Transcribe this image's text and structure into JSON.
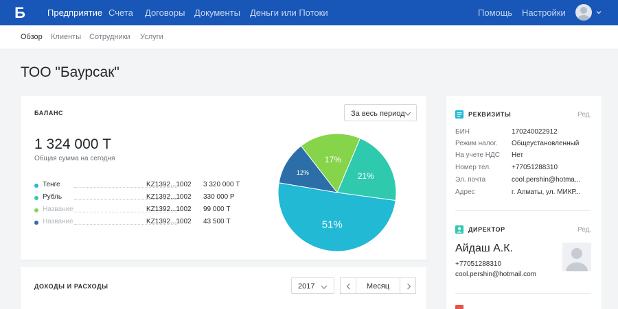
{
  "brand": {
    "logo_letter": "Б",
    "color": "#1856b8"
  },
  "topnav": {
    "items": [
      {
        "label": "Предприятие",
        "active": true
      },
      {
        "label": "Счета"
      },
      {
        "label": "Договоры"
      },
      {
        "label": "Документы"
      },
      {
        "label": "Деньги или Потоки"
      }
    ],
    "help": "Помощь",
    "settings": "Настройки"
  },
  "subnav": {
    "items": [
      {
        "label": "Обзор",
        "active": true
      },
      {
        "label": "Клиенты"
      },
      {
        "label": "Сотрудники"
      },
      {
        "label": "Услуги"
      }
    ]
  },
  "page": {
    "title": "ТОО \"Баурсак\""
  },
  "balance": {
    "label": "БАЛАНС",
    "period_dropdown": "За весь период",
    "total": "1 324 000 Т",
    "total_caption": "Общая сумма на сегодня",
    "accounts": [
      {
        "name": "Тенге",
        "number": "KZ1392...1002",
        "amount": "3 320 000 Т",
        "color": "#21b9d4",
        "muted": false
      },
      {
        "name": "Рубль",
        "number": "KZ1392...1002",
        "amount": "330 000 Р",
        "color": "#2fcaae",
        "muted": false
      },
      {
        "name": "Название",
        "number": "KZ1392...1002",
        "amount": "99 000 Т",
        "color": "#86d44a",
        "muted": true
      },
      {
        "name": "Название",
        "number": "KZ1392...1002",
        "amount": "43 500 Т",
        "color": "#2c6fa8",
        "muted": true
      }
    ]
  },
  "chart_data": {
    "type": "pie",
    "slices": [
      {
        "label": "21%",
        "value": 21,
        "color": "#2fcaae"
      },
      {
        "label": "51%",
        "value": 51,
        "color": "#21b9d4"
      },
      {
        "label": "12%",
        "value": 12,
        "color": "#2c6fa8"
      },
      {
        "label": "17%",
        "value": 17,
        "color": "#86d44a"
      }
    ]
  },
  "income": {
    "label": "ДОХОДЫ И РАСХОДЫ",
    "year": "2017",
    "period": "Месяц"
  },
  "requisites": {
    "label": "РЕКВИЗИТЫ",
    "edit": "Ред.",
    "icon_color": "#21b9d4",
    "rows": [
      {
        "key": "БИН",
        "value": "170240022912"
      },
      {
        "key": "Режим налог.",
        "value": "Общеустановленный"
      },
      {
        "key": "На учете НДС",
        "value": "Нет"
      },
      {
        "key": "Номер тел.",
        "value": "+77051288310"
      },
      {
        "key": "Эл. почта",
        "value": "cool.pershin@hotma..."
      },
      {
        "key": "Адрес",
        "value": "г. Алматы, ул. МИКР..."
      }
    ]
  },
  "director": {
    "label": "ДИРЕКТОР",
    "edit": "Ред.",
    "icon_color": "#2fcaae",
    "name": "Айдаш А.К.",
    "phone": "+77051288310",
    "email": "cool.pershin@hotmail.com"
  }
}
